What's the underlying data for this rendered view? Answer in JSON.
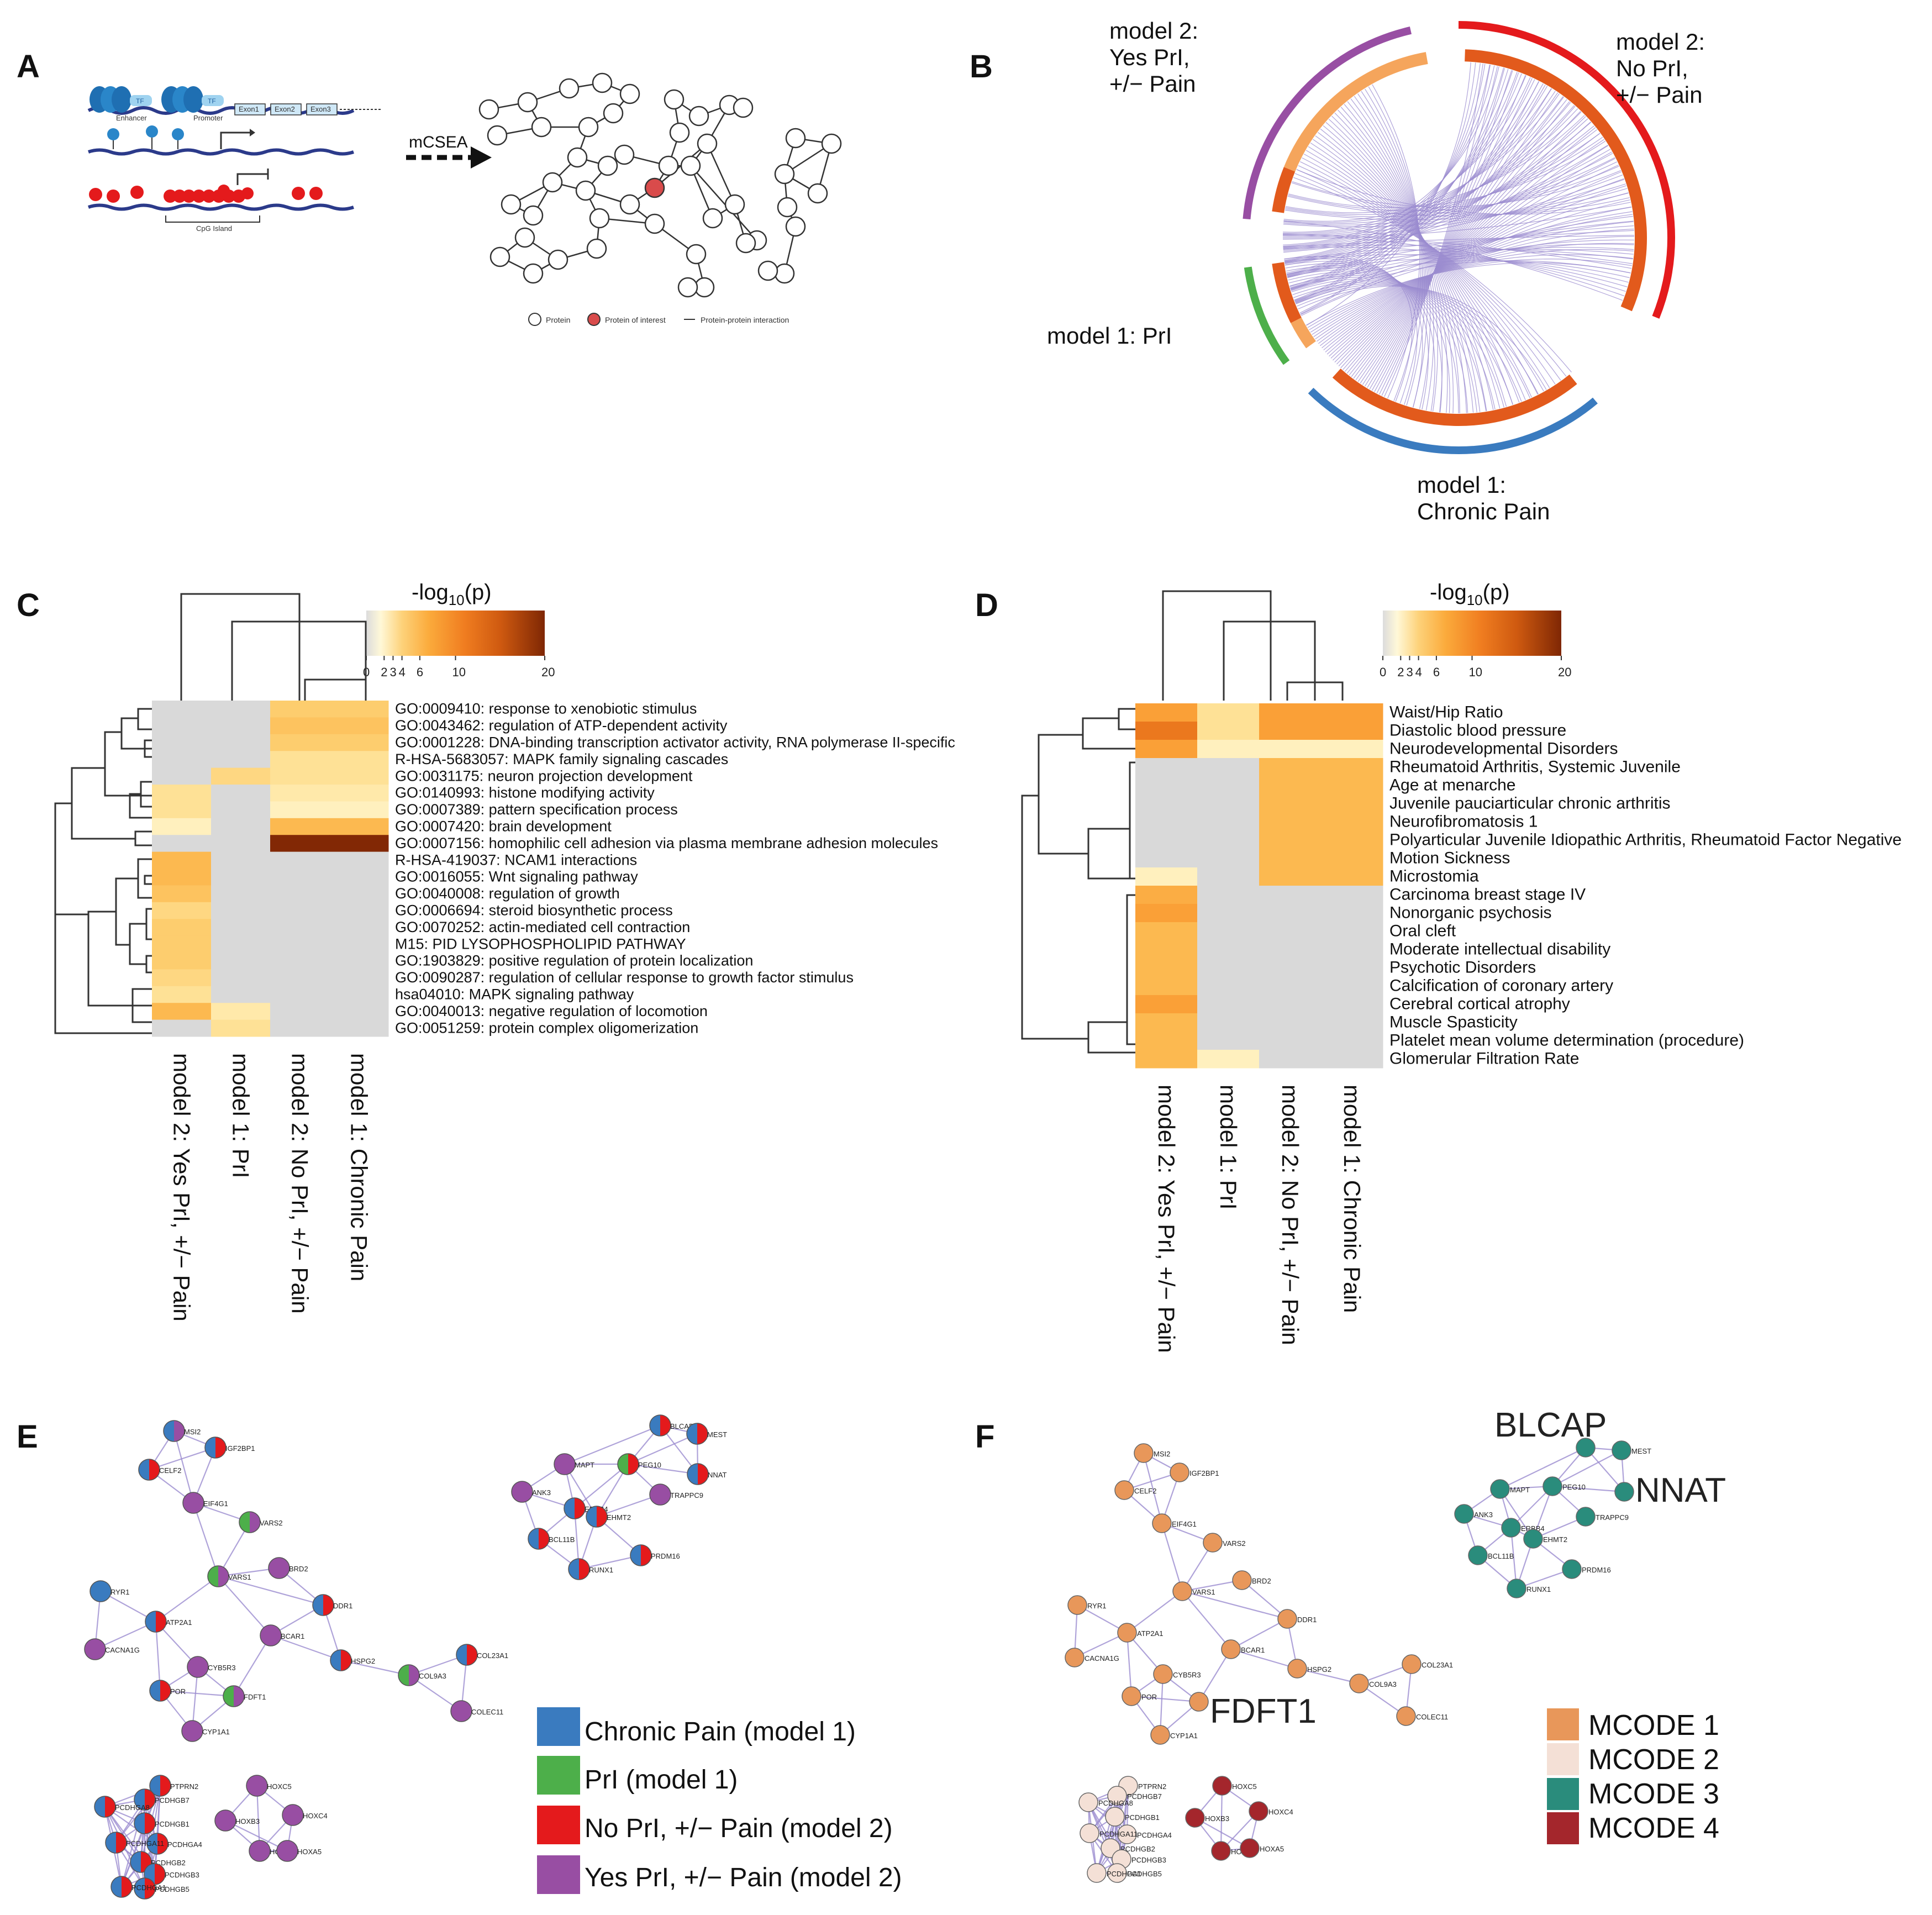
{
  "colors": {
    "chronic": "#3a7bbf",
    "prl": "#4daf4a",
    "noprl": "#e41a1c",
    "yesprl": "#984ea3",
    "gray": "#d9d9d9",
    "mcode1": "#e8975a",
    "mcode2": "#f4e0d6",
    "mcode3": "#2a8c7c",
    "mcode4": "#a4262c",
    "edge": "#9b8ccf",
    "inner": "#e25a1c",
    "innerLight": "#f5a55c"
  },
  "panels": {
    "a": "A",
    "b": "B",
    "c": "C",
    "d": "D",
    "e": "E",
    "f": "F"
  },
  "panelA": {
    "enhancer": "Enhancer",
    "promoter": "Promoter",
    "tf1": "TF",
    "tf2": "TF",
    "exon1": "Exon1",
    "exon2": "Exon2",
    "exon3": "Exon3",
    "cpg": "CpG Island",
    "arrow": "mCSEA",
    "legend": {
      "protein": "Protein",
      "interest": "Protein of interest",
      "ppi": "Protein-protein interaction"
    }
  },
  "panelB": {
    "sectors": [
      {
        "l1": "model 2:",
        "l2": "Yes PrI,",
        "l3": "+/− Pain"
      },
      {
        "l1": "model 2:",
        "l2": "No PrI,",
        "l3": "+/− Pain"
      },
      {
        "l1": "model 1: PrI",
        "l2": "",
        "l3": ""
      },
      {
        "l1": "model 1:",
        "l2": "Chronic Pain",
        "l3": ""
      }
    ]
  },
  "scale": {
    "title_pre": "-log",
    "title_sub": "10",
    "title_post": "(p)",
    "ticks": [
      "0",
      "2",
      "3",
      "4",
      "6",
      "10",
      "20"
    ],
    "tick_values": [
      0,
      2,
      3,
      4,
      6,
      10,
      20
    ]
  },
  "columns": [
    "model 2: Yes PrI, +/− Pain",
    "model 1: PrI",
    "model 2: No PrI, +/− Pain",
    "model 1: Chronic Pain"
  ],
  "chart_data": [
    {
      "type": "heatmap",
      "panel": "C",
      "title": "-log10(p)",
      "columns": [
        "model 2: Yes PrI, +/− Pain",
        "model 1: PrI",
        "model 2: No PrI, +/− Pain",
        "model 1: Chronic Pain"
      ],
      "rows": [
        "GO:0009410: response to xenobiotic stimulus",
        "GO:0043462: regulation of ATP-dependent activity",
        "GO:0001228: DNA-binding transcription activator activity, RNA polymerase II-specific",
        "R-HSA-5683057: MAPK family signaling cascades",
        "GO:0031175: neuron projection development",
        "GO:0140993: histone modifying activity",
        "GO:0007389: pattern specification process",
        "GO:0007420: brain development",
        "GO:0007156: homophilic cell adhesion via plasma membrane adhesion molecules",
        "R-HSA-419037: NCAM1 interactions",
        "GO:0016055: Wnt signaling pathway",
        "GO:0040008: regulation of growth",
        "GO:0006694: steroid biosynthetic process",
        "GO:0070252: actin-mediated cell contraction",
        "M15: PID LYSOPHOSPHOLIPID PATHWAY",
        "GO:1903829: positive regulation of protein localization",
        "GO:0090287: regulation of cellular response to growth factor stimulus",
        "hsa04010: MAPK signaling pathway",
        "GO:0040013: negative regulation of locomotion",
        "GO:0051259: protein complex oligomerization"
      ],
      "values": [
        [
          0,
          0,
          4,
          4
        ],
        [
          0,
          0,
          4.5,
          4.5
        ],
        [
          0,
          0,
          4,
          4
        ],
        [
          0,
          0,
          3,
          3
        ],
        [
          0,
          3.5,
          3,
          3
        ],
        [
          3,
          0,
          2.5,
          2.5
        ],
        [
          3,
          0,
          2,
          2
        ],
        [
          2,
          0,
          5,
          5
        ],
        [
          0,
          0,
          20,
          20
        ],
        [
          5,
          0,
          0,
          0
        ],
        [
          5,
          0,
          0,
          0
        ],
        [
          4.5,
          0,
          0,
          0
        ],
        [
          3.5,
          0,
          0,
          0
        ],
        [
          4,
          0,
          0,
          0
        ],
        [
          4,
          0,
          0,
          0
        ],
        [
          4,
          0,
          0,
          0
        ],
        [
          3.5,
          0,
          0,
          0
        ],
        [
          3,
          0,
          0,
          0
        ],
        [
          5,
          2.5,
          0,
          0
        ],
        [
          0,
          3,
          0,
          0
        ]
      ],
      "range": [
        0,
        20
      ]
    },
    {
      "type": "heatmap",
      "panel": "D",
      "title": "-log10(p)",
      "columns": [
        "model 2: Yes PrI, +/− Pain",
        "model 1: PrI",
        "model 2: No PrI, +/− Pain",
        "model 1: Chronic Pain"
      ],
      "rows": [
        "Waist/Hip Ratio",
        "Diastolic blood pressure",
        "Neurodevelopmental Disorders",
        "Rheumatoid Arthritis, Systemic Juvenile",
        "Age at menarche",
        "Juvenile pauciarticular chronic arthritis",
        "Neurofibromatosis 1",
        "Polyarticular Juvenile Idiopathic Arthritis, Rheumatoid Factor Negative",
        "Motion Sickness",
        "Microstomia",
        "Carcinoma breast stage IV",
        "Nonorganic psychosis",
        "Oral cleft",
        "Moderate intellectual disability",
        "Psychotic Disorders",
        "Calcification of coronary artery",
        "Cerebral cortical atrophy",
        "Muscle Spasticity",
        "Platelet mean volume determination (procedure)",
        "Glomerular Filtration Rate"
      ],
      "values": [
        [
          6,
          3,
          6,
          6
        ],
        [
          9,
          3,
          6,
          6
        ],
        [
          6,
          2,
          2,
          2
        ],
        [
          0,
          0,
          5,
          5
        ],
        [
          0,
          0,
          5,
          5
        ],
        [
          0,
          0,
          5,
          5
        ],
        [
          0,
          0,
          5,
          5
        ],
        [
          0,
          0,
          5,
          5
        ],
        [
          0,
          0,
          5,
          5
        ],
        [
          2,
          0,
          5,
          5
        ],
        [
          5.5,
          0,
          0,
          0
        ],
        [
          6,
          0,
          0,
          0
        ],
        [
          5,
          0,
          0,
          0
        ],
        [
          5,
          0,
          0,
          0
        ],
        [
          5,
          0,
          0,
          0
        ],
        [
          5,
          0,
          0,
          0
        ],
        [
          6,
          0,
          0,
          0
        ],
        [
          5,
          0,
          0,
          0
        ],
        [
          5,
          0,
          0,
          0
        ],
        [
          5,
          2,
          0,
          0
        ]
      ],
      "range": [
        0,
        20
      ]
    }
  ],
  "networkE": {
    "legend": [
      "Chronic Pain (model 1)",
      "PrI (model 1)",
      "No PrI, +/− Pain (model 2)",
      "Yes PrI, +/− Pain (model 2)"
    ]
  },
  "networkF": {
    "legend": [
      "MCODE 1",
      "MCODE 2",
      "MCODE 3",
      "MCODE 4"
    ],
    "big": [
      "BLCAP",
      "NNAT",
      "FDFT1"
    ]
  },
  "networks": {
    "nodes": [
      {
        "id": "MSI2",
        "c": [
          "yesprl",
          "chronic"
        ],
        "m": 1
      },
      {
        "id": "IGF2BP1",
        "c": [
          "noprl",
          "chronic"
        ],
        "m": 1
      },
      {
        "id": "CELF2",
        "c": [
          "noprl",
          "chronic"
        ],
        "m": 1
      },
      {
        "id": "EIF4G1",
        "c": [
          "yesprl"
        ],
        "m": 1
      },
      {
        "id": "VARS2",
        "c": [
          "yesprl",
          "prl"
        ],
        "m": 1
      },
      {
        "id": "BRD2",
        "c": [
          "yesprl"
        ],
        "m": 1
      },
      {
        "id": "VARS1",
        "c": [
          "yesprl",
          "prl"
        ],
        "m": 1
      },
      {
        "id": "RYR1",
        "c": [
          "chronic"
        ],
        "m": 1
      },
      {
        "id": "ATP2A1",
        "c": [
          "noprl",
          "chronic"
        ],
        "m": 1
      },
      {
        "id": "DDR1",
        "c": [
          "noprl",
          "chronic"
        ],
        "m": 1
      },
      {
        "id": "BCAR1",
        "c": [
          "yesprl"
        ],
        "m": 1
      },
      {
        "id": "CACNA1G",
        "c": [
          "yesprl"
        ],
        "m": 1
      },
      {
        "id": "CYB5R3",
        "c": [
          "yesprl"
        ],
        "m": 1
      },
      {
        "id": "HSPG2",
        "c": [
          "noprl",
          "chronic"
        ],
        "m": 1
      },
      {
        "id": "COL23A1",
        "c": [
          "noprl",
          "chronic"
        ],
        "m": 1
      },
      {
        "id": "POR",
        "c": [
          "noprl",
          "chronic"
        ],
        "m": 1
      },
      {
        "id": "FDFT1",
        "c": [
          "yesprl",
          "prl"
        ],
        "m": 1,
        "big": true
      },
      {
        "id": "COL9A3",
        "c": [
          "yesprl",
          "prl"
        ],
        "m": 1
      },
      {
        "id": "COLEC11",
        "c": [
          "yesprl"
        ],
        "m": 1
      },
      {
        "id": "CYP1A1",
        "c": [
          "yesprl"
        ],
        "m": 1
      },
      {
        "id": "BLCAP",
        "c": [
          "noprl",
          "chronic"
        ],
        "m": 3,
        "big": true
      },
      {
        "id": "MEST",
        "c": [
          "noprl",
          "chronic"
        ],
        "m": 3
      },
      {
        "id": "MAPT",
        "c": [
          "yesprl"
        ],
        "m": 3
      },
      {
        "id": "PEG10",
        "c": [
          "noprl",
          "prl"
        ],
        "m": 3
      },
      {
        "id": "NNAT",
        "c": [
          "noprl",
          "chronic"
        ],
        "m": 3,
        "big": true
      },
      {
        "id": "ANK3",
        "c": [
          "yesprl"
        ],
        "m": 3
      },
      {
        "id": "ERBB4",
        "c": [
          "noprl",
          "chronic"
        ],
        "m": 3
      },
      {
        "id": "TRAPPC9",
        "c": [
          "yesprl"
        ],
        "m": 3
      },
      {
        "id": "EHMT2",
        "c": [
          "noprl",
          "chronic"
        ],
        "m": 3
      },
      {
        "id": "BCL11B",
        "c": [
          "noprl",
          "chronic"
        ],
        "m": 3
      },
      {
        "id": "PRDM16",
        "c": [
          "noprl",
          "chronic"
        ],
        "m": 3
      },
      {
        "id": "RUNX1",
        "c": [
          "noprl",
          "chronic"
        ],
        "m": 3
      },
      {
        "id": "PTPRN2",
        "c": [
          "noprl",
          "chronic"
        ],
        "m": 2
      },
      {
        "id": "PCDHGB7",
        "c": [
          "noprl",
          "chronic"
        ],
        "m": 2
      },
      {
        "id": "PCDHGA8",
        "c": [
          "noprl",
          "chronic"
        ],
        "m": 2
      },
      {
        "id": "PCDHGB1",
        "c": [
          "noprl",
          "chronic"
        ],
        "m": 2
      },
      {
        "id": "PCDHGA4",
        "c": [
          "noprl",
          "chronic"
        ],
        "m": 2
      },
      {
        "id": "PCDHGB2",
        "c": [
          "noprl",
          "chronic"
        ],
        "m": 2
      },
      {
        "id": "PCDHGA11",
        "c": [
          "noprl",
          "chronic"
        ],
        "m": 2
      },
      {
        "id": "PCDHGB3",
        "c": [
          "noprl",
          "chronic"
        ],
        "m": 2
      },
      {
        "id": "PCDHGB5",
        "c": [
          "noprl",
          "chronic"
        ],
        "m": 2
      },
      {
        "id": "PCDHGA1",
        "c": [
          "noprl",
          "chronic"
        ],
        "m": 2
      },
      {
        "id": "HOXC5",
        "c": [
          "yesprl"
        ],
        "m": 4
      },
      {
        "id": "HOXB3",
        "c": [
          "yesprl"
        ],
        "m": 4
      },
      {
        "id": "HOXC4",
        "c": [
          "yesprl"
        ],
        "m": 4
      },
      {
        "id": "HOXB5",
        "c": [
          "yesprl"
        ],
        "m": 4
      },
      {
        "id": "HOXA5",
        "c": [
          "yesprl"
        ],
        "m": 4
      }
    ],
    "edges": [
      [
        "MSI2",
        "IGF2BP1"
      ],
      [
        "MSI2",
        "CELF2"
      ],
      [
        "IGF2BP1",
        "CELF2"
      ],
      [
        "CELF2",
        "EIF4G1"
      ],
      [
        "IGF2BP1",
        "EIF4G1"
      ],
      [
        "MSI2",
        "EIF4G1"
      ],
      [
        "EIF4G1",
        "VARS2"
      ],
      [
        "EIF4G1",
        "VARS1"
      ],
      [
        "VARS2",
        "VARS1"
      ],
      [
        "VARS1",
        "BRD2"
      ],
      [
        "VARS1",
        "ATP2A1"
      ],
      [
        "VARS1",
        "BCAR1"
      ],
      [
        "VARS1",
        "DDR1"
      ],
      [
        "BRD2",
        "DDR1"
      ],
      [
        "RYR1",
        "ATP2A1"
      ],
      [
        "RYR1",
        "CACNA1G"
      ],
      [
        "ATP2A1",
        "CACNA1G"
      ],
      [
        "ATP2A1",
        "CYB5R3"
      ],
      [
        "ATP2A1",
        "POR"
      ],
      [
        "BCAR1",
        "DDR1"
      ],
      [
        "BCAR1",
        "HSPG2"
      ],
      [
        "BCAR1",
        "FDFT1"
      ],
      [
        "DDR1",
        "HSPG2"
      ],
      [
        "HSPG2",
        "COL9A3"
      ],
      [
        "COL9A3",
        "COL23A1"
      ],
      [
        "COL9A3",
        "COLEC11"
      ],
      [
        "COL23A1",
        "COLEC11"
      ],
      [
        "CYB5R3",
        "POR"
      ],
      [
        "CYB5R3",
        "FDFT1"
      ],
      [
        "CYB5R3",
        "CYP1A1"
      ],
      [
        "POR",
        "CYP1A1"
      ],
      [
        "POR",
        "FDFT1"
      ],
      [
        "FDFT1",
        "CYP1A1"
      ],
      [
        "BLCAP",
        "MEST"
      ],
      [
        "BLCAP",
        "PEG10"
      ],
      [
        "BLCAP",
        "NNAT"
      ],
      [
        "BLCAP",
        "MAPT"
      ],
      [
        "MEST",
        "PEG10"
      ],
      [
        "MEST",
        "NNAT"
      ],
      [
        "PEG10",
        "NNAT"
      ],
      [
        "PEG10",
        "MAPT"
      ],
      [
        "PEG10",
        "TRAPPC9"
      ],
      [
        "PEG10",
        "EHMT2"
      ],
      [
        "PEG10",
        "ERBB4"
      ],
      [
        "MAPT",
        "ANK3"
      ],
      [
        "MAPT",
        "ERBB4"
      ],
      [
        "MAPT",
        "EHMT2"
      ],
      [
        "ANK3",
        "ERBB4"
      ],
      [
        "ANK3",
        "BCL11B"
      ],
      [
        "ERBB4",
        "EHMT2"
      ],
      [
        "ERBB4",
        "BCL11B"
      ],
      [
        "ERBB4",
        "RUNX1"
      ],
      [
        "EHMT2",
        "TRAPPC9"
      ],
      [
        "EHMT2",
        "PRDM16"
      ],
      [
        "EHMT2",
        "RUNX1"
      ],
      [
        "BCL11B",
        "RUNX1"
      ],
      [
        "RUNX1",
        "PRDM16"
      ],
      [
        "HOXC5",
        "HOXB3"
      ],
      [
        "HOXC5",
        "HOXC4"
      ],
      [
        "HOXB3",
        "HOXB5"
      ],
      [
        "HOXB3",
        "HOXA5"
      ],
      [
        "HOXC4",
        "HOXA5"
      ],
      [
        "HOXC4",
        "HOXB5"
      ],
      [
        "HOXB5",
        "HOXA5"
      ],
      [
        "HOXC5",
        "HOXB5"
      ]
    ]
  }
}
